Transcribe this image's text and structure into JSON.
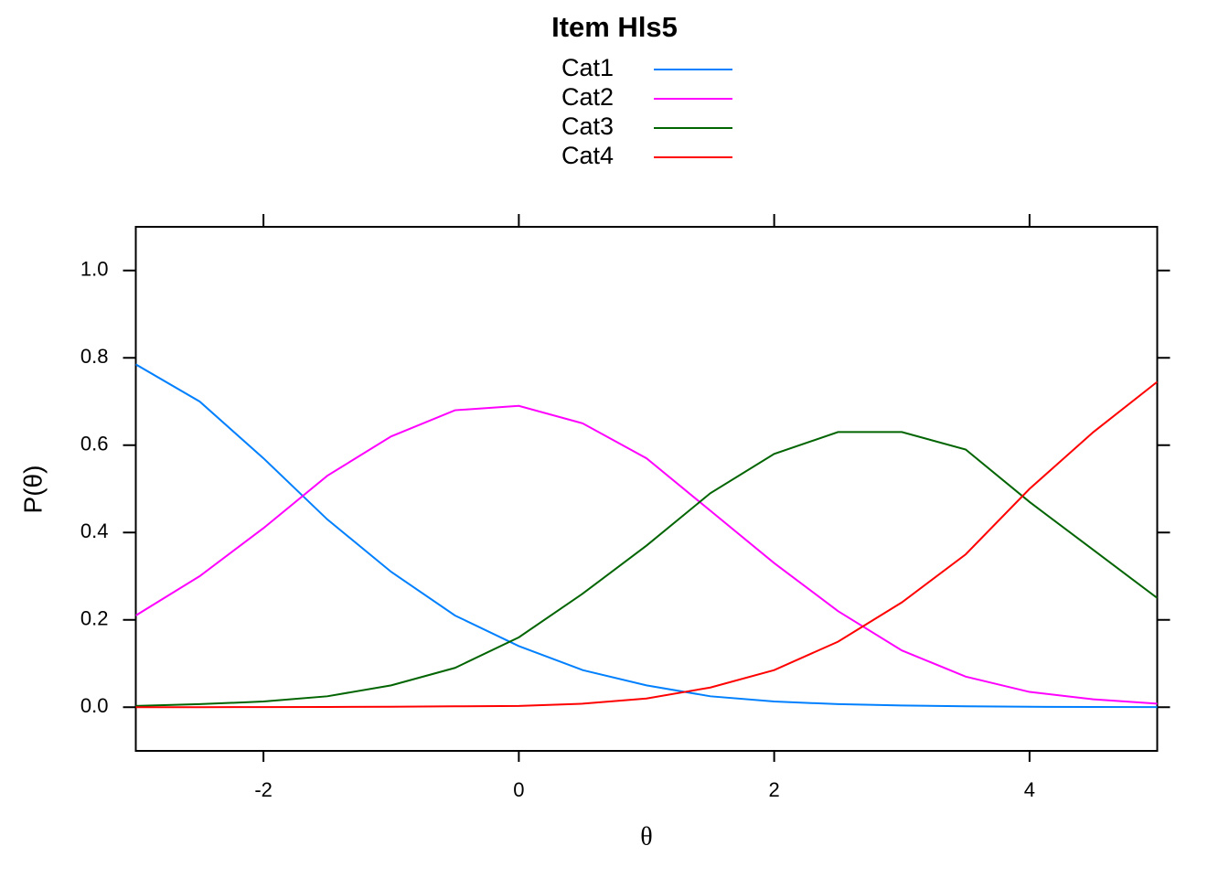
{
  "chart_data": {
    "type": "line",
    "title": "Item Hls5",
    "xlabel": "θ",
    "ylabel": "P(θ)",
    "x": [
      -3,
      -2.5,
      -2,
      -1.5,
      -1,
      -0.5,
      0,
      0.5,
      1,
      1.5,
      2,
      2.5,
      3,
      3.5,
      4,
      4.5,
      5
    ],
    "series": [
      {
        "name": "Cat1",
        "color": "#0080ff",
        "values": [
          0.785,
          0.7,
          0.57,
          0.43,
          0.31,
          0.21,
          0.14,
          0.085,
          0.05,
          0.025,
          0.013,
          0.007,
          0.004,
          0.002,
          0.001,
          0.0005,
          0.0003
        ]
      },
      {
        "name": "Cat2",
        "color": "#ff00ff",
        "values": [
          0.21,
          0.3,
          0.41,
          0.53,
          0.62,
          0.68,
          0.69,
          0.65,
          0.57,
          0.45,
          0.33,
          0.22,
          0.13,
          0.07,
          0.035,
          0.018,
          0.008
        ]
      },
      {
        "name": "Cat3",
        "color": "#006400",
        "values": [
          0.003,
          0.007,
          0.013,
          0.025,
          0.05,
          0.09,
          0.16,
          0.26,
          0.37,
          0.49,
          0.58,
          0.63,
          0.63,
          0.59,
          0.47,
          0.36,
          0.25
        ]
      },
      {
        "name": "Cat4",
        "color": "#ff0000",
        "values": [
          0,
          0,
          0.0003,
          0.0005,
          0.001,
          0.002,
          0.003,
          0.008,
          0.02,
          0.045,
          0.085,
          0.15,
          0.24,
          0.35,
          0.5,
          0.63,
          0.745
        ]
      }
    ],
    "xlim": [
      -3,
      5
    ],
    "xticks": [
      -2,
      0,
      2,
      4
    ],
    "ylim": [
      -0.1,
      1.1
    ],
    "yticks": [
      {
        "value": 0,
        "label": "0.0"
      },
      0.2,
      0.4,
      0.6,
      0.8,
      {
        "value": 1,
        "label": "1.0"
      }
    ]
  }
}
